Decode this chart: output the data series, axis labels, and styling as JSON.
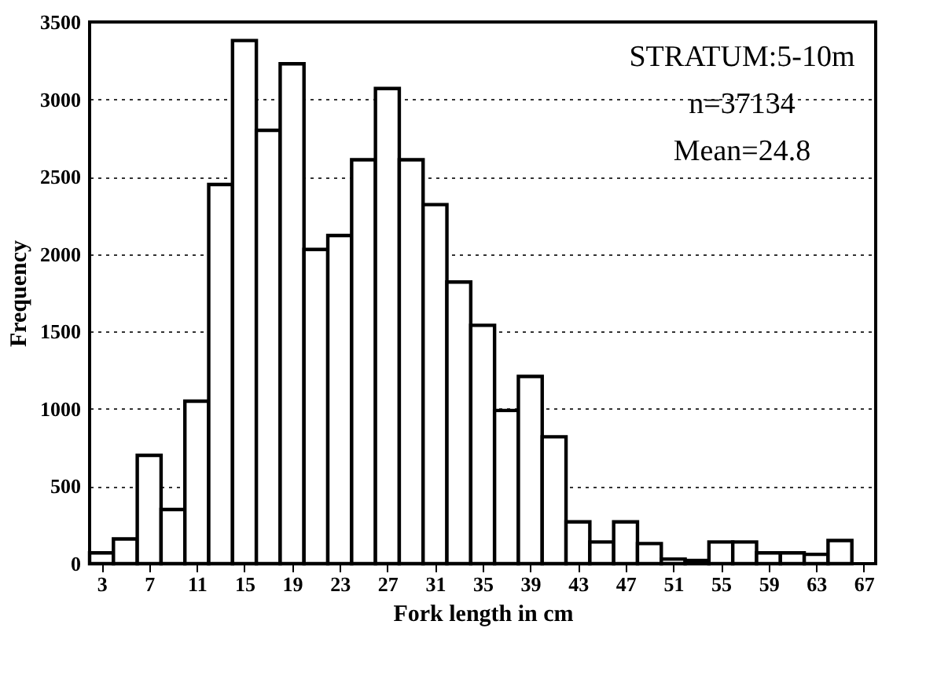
{
  "chart_data": {
    "type": "histogram",
    "xlabel": "Fork length in cm",
    "ylabel": "Frequency",
    "annotations": [
      "STRATUM:5-10m",
      "n=37134",
      "Mean=24.8"
    ],
    "bins": [
      2,
      4,
      6,
      8,
      10,
      12,
      14,
      16,
      18,
      20,
      22,
      24,
      26,
      28,
      30,
      32,
      34,
      36,
      38,
      40,
      42,
      44,
      46,
      48,
      50,
      52,
      54,
      56,
      58,
      60,
      62,
      64,
      66
    ],
    "values": [
      70,
      160,
      700,
      350,
      1050,
      2450,
      3380,
      2800,
      3230,
      2030,
      2120,
      2610,
      3070,
      2610,
      2320,
      1820,
      1540,
      990,
      1210,
      820,
      270,
      140,
      270,
      130,
      30,
      20,
      140,
      140,
      70,
      70,
      60,
      150
    ],
    "color": "#ffffff",
    "xlim": [
      2,
      68
    ],
    "xticks": [
      3,
      7,
      11,
      15,
      19,
      23,
      27,
      31,
      35,
      39,
      43,
      47,
      51,
      55,
      59,
      63,
      67
    ],
    "ylim": [
      0,
      3500
    ],
    "yticks": [
      0,
      500,
      1000,
      1500,
      2000,
      2500,
      3000,
      3500
    ],
    "grid": "y"
  }
}
